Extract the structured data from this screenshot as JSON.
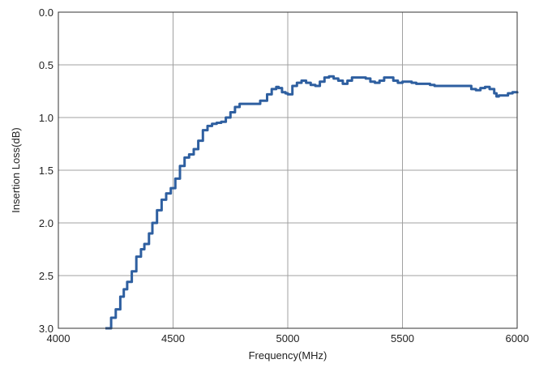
{
  "chart_data": {
    "type": "line",
    "title": "",
    "xlabel": "Frequency(MHz)",
    "ylabel": "Insertion Loss(dB)",
    "xlim": [
      4000,
      6000
    ],
    "ylim": [
      0.0,
      3.0
    ],
    "y_inverted": true,
    "grid": true,
    "x_ticks": [
      "4000",
      "4500",
      "5000",
      "5500",
      "6000"
    ],
    "y_ticks": [
      "0.0",
      "0.5",
      "1.0",
      "1.5",
      "2.0",
      "2.5",
      "3.0"
    ],
    "colors": {
      "line": "#2e5fa0",
      "grid": "#a0a0a0",
      "frame": "#333333"
    },
    "series": [
      {
        "x": [
          4205,
          4230,
          4250,
          4270,
          4285,
          4300,
          4320,
          4340,
          4360,
          4375,
          4395,
          4410,
          4430,
          4450,
          4470,
          4490,
          4510,
          4530,
          4550,
          4570,
          4590,
          4610,
          4630,
          4650,
          4670,
          4690,
          4710,
          4730,
          4750,
          4770,
          4790,
          4810,
          4830,
          4850,
          4880,
          4910,
          4930,
          4950,
          4960,
          4975,
          4990,
          5000,
          5020,
          5040,
          5060,
          5080,
          5100,
          5120,
          5140,
          5160,
          5180,
          5200,
          5220,
          5240,
          5260,
          5280,
          5300,
          5320,
          5340,
          5360,
          5380,
          5400,
          5420,
          5440,
          5460,
          5480,
          5500,
          5520,
          5540,
          5560,
          5580,
          5600,
          5620,
          5640,
          5660,
          5680,
          5700,
          5720,
          5740,
          5760,
          5780,
          5800,
          5820,
          5840,
          5860,
          5880,
          5900,
          5910,
          5920,
          5940,
          5960,
          5980,
          6000
        ],
        "y": [
          3.0,
          2.9,
          2.82,
          2.7,
          2.63,
          2.56,
          2.46,
          2.32,
          2.25,
          2.2,
          2.1,
          2.0,
          1.88,
          1.78,
          1.72,
          1.67,
          1.58,
          1.46,
          1.38,
          1.35,
          1.3,
          1.22,
          1.12,
          1.08,
          1.06,
          1.05,
          1.04,
          1.0,
          0.95,
          0.9,
          0.87,
          0.87,
          0.87,
          0.87,
          0.84,
          0.78,
          0.73,
          0.71,
          0.72,
          0.76,
          0.77,
          0.78,
          0.7,
          0.67,
          0.65,
          0.67,
          0.69,
          0.7,
          0.66,
          0.62,
          0.61,
          0.63,
          0.65,
          0.68,
          0.65,
          0.62,
          0.62,
          0.62,
          0.63,
          0.66,
          0.67,
          0.65,
          0.62,
          0.62,
          0.65,
          0.67,
          0.66,
          0.66,
          0.67,
          0.68,
          0.68,
          0.68,
          0.69,
          0.7,
          0.7,
          0.7,
          0.7,
          0.7,
          0.7,
          0.7,
          0.7,
          0.73,
          0.74,
          0.72,
          0.71,
          0.73,
          0.77,
          0.8,
          0.79,
          0.79,
          0.77,
          0.76,
          0.77
        ]
      }
    ]
  }
}
